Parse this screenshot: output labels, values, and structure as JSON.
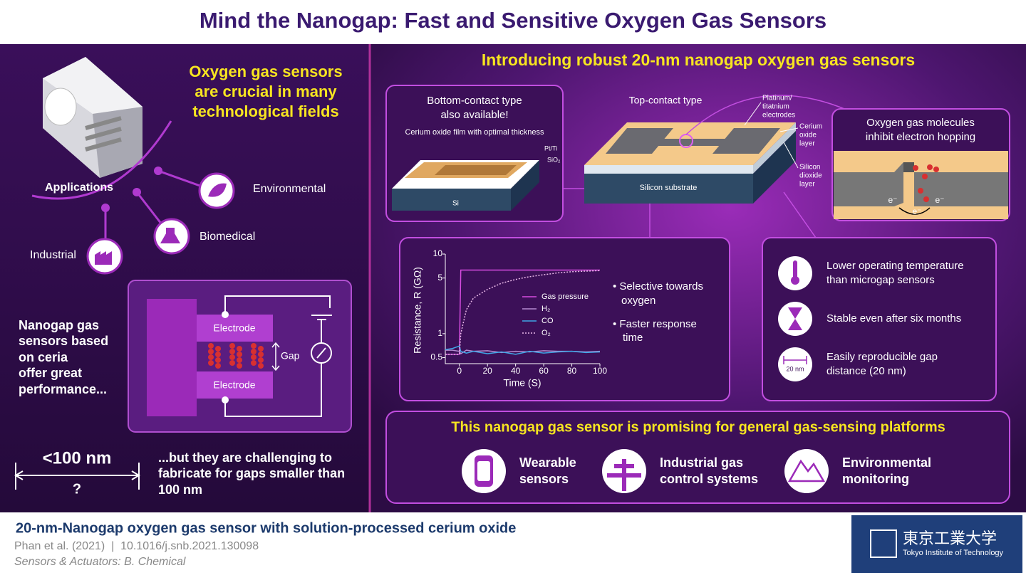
{
  "header": {
    "title": "Mind the Nanogap: Fast and Sensitive Oxygen Gas Sensors"
  },
  "left": {
    "heading": [
      "Oxygen gas sensors",
      "are crucial in many",
      "technological fields"
    ],
    "applications": {
      "label": "Applications",
      "items": [
        "Environmental",
        "Biomedical",
        "Industrial"
      ]
    },
    "nanogap_text": [
      "Nanogap gas",
      "sensors based",
      "on ceria",
      "offer great",
      "performance..."
    ],
    "circuit": {
      "electrode_top": "Electrode",
      "electrode_bottom": "Electrode",
      "gap": "Gap"
    },
    "size": {
      "label": "<100 nm",
      "question": "?"
    },
    "challenge": [
      "...but they are challenging to",
      "fabricate for gaps smaller than",
      "100 nm"
    ]
  },
  "right": {
    "heading": "Introducing robust 20-nm nanogap oxygen gas sensors",
    "bottom_contact": {
      "title": [
        "Bottom-contact type",
        "also available!"
      ],
      "film": "Cerium oxide film with optimal thickness",
      "ptti": "Pt/Ti",
      "sio2": "SiO₂",
      "si": "Si"
    },
    "top_contact": {
      "title": "Top-contact type",
      "electrodes": [
        "Platinum/",
        "titatnium",
        "electrodes"
      ],
      "cerium": [
        "Cerium",
        "oxide",
        "layer"
      ],
      "sio2": [
        "Silicon",
        "dioxide",
        "layer"
      ],
      "substrate": "Silicon substrate"
    },
    "inhibit": {
      "title": [
        "Oxygen gas molecules",
        "inhibit electron hopping"
      ],
      "electron": "e⁻"
    },
    "features": [
      [
        "• Selective towards",
        "oxygen"
      ],
      [
        "• Faster response",
        "time"
      ]
    ],
    "advantages": [
      [
        "Lower operating temperature",
        "than microgap sensors"
      ],
      [
        "Stable even after six months"
      ],
      [
        "Easily reproducible gap",
        "distance (20 nm)"
      ]
    ],
    "gap_icon": "20 nm"
  },
  "chart": {
    "type": "line",
    "x_label": "Time (S)",
    "y_label": "Resistance, R (GΩ)",
    "yscale": "log",
    "xlim": [
      -10,
      100
    ],
    "ylim": [
      0.42,
      10
    ],
    "xticks": [
      0,
      20,
      40,
      60,
      80,
      100
    ],
    "yticks": [
      0.5,
      1,
      5,
      10
    ],
    "x": [
      -10,
      -5,
      0,
      1,
      5,
      10,
      20,
      30,
      40,
      50,
      60,
      70,
      80,
      90,
      100
    ],
    "series": [
      {
        "name": "Gas pressure",
        "color": "#d64ce0",
        "style": "solid",
        "values": [
          0.55,
          0.55,
          0.55,
          6.3,
          6.3,
          6.3,
          6.3,
          6.3,
          6.3,
          6.3,
          6.3,
          6.3,
          6.3,
          6.3,
          6.3
        ]
      },
      {
        "name": "H₂",
        "color": "#b48ad0",
        "style": "solid",
        "values": [
          0.62,
          0.62,
          0.6,
          0.56,
          0.62,
          0.6,
          0.61,
          0.58,
          0.6,
          0.59,
          0.61,
          0.6,
          0.6,
          0.59,
          0.6
        ]
      },
      {
        "name": "CO",
        "color": "#3fa6e6",
        "style": "solid",
        "values": [
          0.63,
          0.65,
          0.7,
          0.6,
          0.57,
          0.6,
          0.56,
          0.59,
          0.55,
          0.6,
          0.57,
          0.59,
          0.6,
          0.58,
          0.59
        ]
      },
      {
        "name": "O₂",
        "color": "#e8b8e8",
        "style": "dotted",
        "values": [
          0.55,
          0.55,
          0.55,
          1.0,
          2.0,
          2.8,
          3.6,
          4.3,
          4.8,
          5.2,
          5.5,
          5.8,
          6.0,
          6.1,
          6.2
        ]
      }
    ]
  },
  "bottom": {
    "heading": "This nanogap gas sensor is promising for general gas-sensing platforms",
    "items": [
      [
        "Wearable",
        "sensors"
      ],
      [
        "Industrial gas",
        "control systems"
      ],
      [
        "Environmental",
        "monitoring"
      ]
    ]
  },
  "footer": {
    "title": "20-nm-Nanogap oxygen gas sensor with solution-processed cerium oxide",
    "citation": "Phan et al. (2021)  |  10.1016/j.snb.2021.130098",
    "journal": "Sensors & Actuators: B. Chemical",
    "logo_jp": "東京工業大学",
    "logo_en": "Tokyo Institute of Technology"
  }
}
